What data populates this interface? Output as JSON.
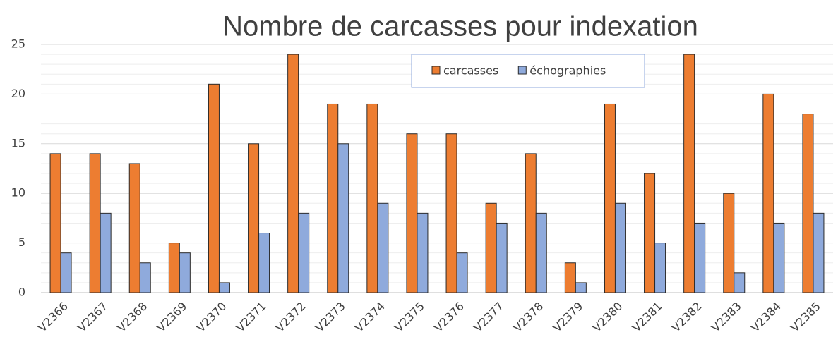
{
  "chart_data": {
    "type": "bar",
    "title": "Nombre de carcasses pour indexation",
    "categories": [
      "V2366",
      "V2367",
      "V2368",
      "V2369",
      "V2370",
      "V2371",
      "V2372",
      "V2373",
      "V2374",
      "V2375",
      "V2376",
      "V2377",
      "V2378",
      "V2379",
      "V2380",
      "V2381",
      "V2382",
      "V2383",
      "V2384",
      "V2385"
    ],
    "series": [
      {
        "name": "carcasses",
        "color": "#ED7D31",
        "values": [
          14,
          14,
          13,
          5,
          21,
          15,
          24,
          19,
          19,
          16,
          16,
          9,
          14,
          3,
          19,
          12,
          24,
          10,
          20,
          18
        ]
      },
      {
        "name": "échographies",
        "color": "#8FAADC",
        "values": [
          4,
          8,
          3,
          4,
          1,
          6,
          8,
          15,
          9,
          8,
          4,
          7,
          8,
          1,
          9,
          5,
          7,
          2,
          7,
          8
        ]
      }
    ],
    "ylim": [
      0,
      25
    ],
    "yticks": [
      0,
      5,
      10,
      15,
      20,
      25
    ],
    "grid": true,
    "minor_grid": true,
    "legend": "top"
  }
}
